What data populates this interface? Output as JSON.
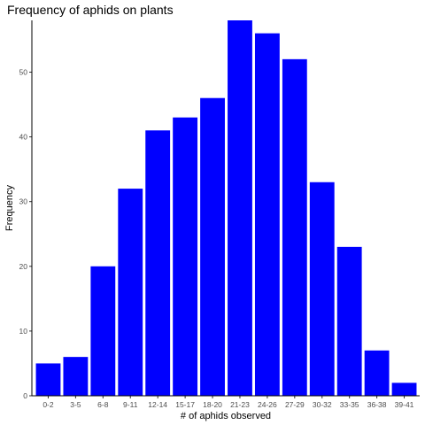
{
  "chart_data": {
    "type": "bar",
    "title": "Frequency of aphids on plants",
    "xlabel": "# of aphids observed",
    "ylabel": "Frequency",
    "categories": [
      "0-2",
      "3-5",
      "6-8",
      "9-11",
      "12-14",
      "15-17",
      "18-20",
      "21-23",
      "24-26",
      "27-29",
      "30-32",
      "33-35",
      "36-38",
      "39-41"
    ],
    "values": [
      5,
      6,
      20,
      32,
      41,
      43,
      46,
      58,
      56,
      52,
      33,
      23,
      7,
      2
    ],
    "ylim": [
      0,
      58
    ],
    "yticks": [
      0,
      10,
      20,
      30,
      40,
      50
    ],
    "grid": false,
    "bar_color": "#0000ff"
  }
}
